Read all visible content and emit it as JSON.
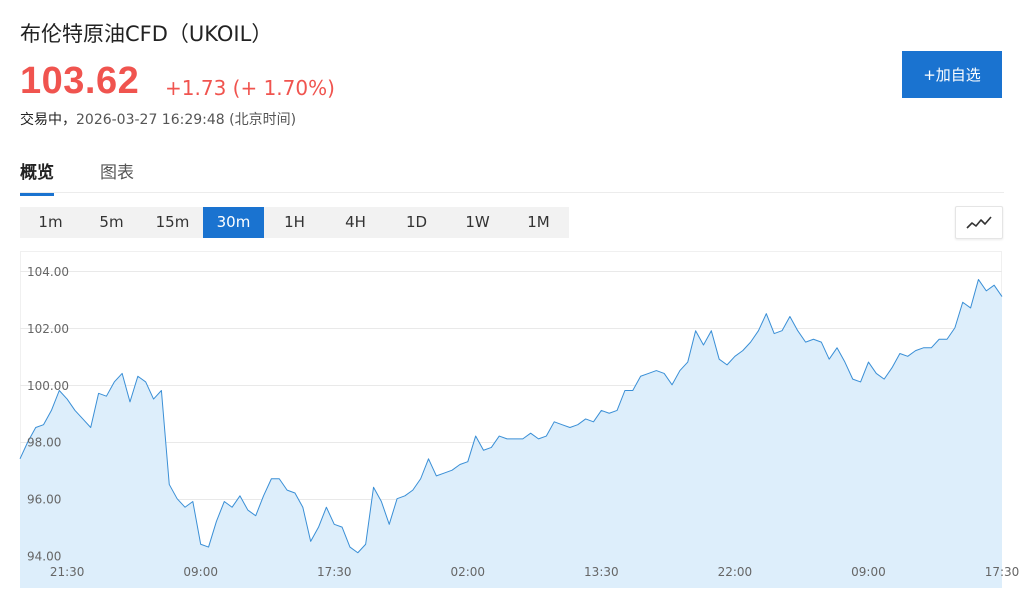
{
  "header": {
    "title": "布伦特原油CFD（UKOIL）",
    "price": "103.62",
    "change": "+1.73 (+ 1.70%)",
    "status": "交易中，",
    "timestamp": "2026-03-27 16:29:48 (北京时间)",
    "watch_button": "+加自选"
  },
  "colors": {
    "up": "#f0544f",
    "accent": "#1a73d0",
    "line": "#3a8fd6",
    "fill": "#ddeefb",
    "grid": "#e9e9e9"
  },
  "tabs": [
    {
      "label": "概览",
      "active": true
    },
    {
      "label": "图表",
      "active": false
    }
  ],
  "intervals": [
    {
      "label": "1m",
      "active": false
    },
    {
      "label": "5m",
      "active": false
    },
    {
      "label": "15m",
      "active": false
    },
    {
      "label": "30m",
      "active": true
    },
    {
      "label": "1H",
      "active": false
    },
    {
      "label": "4H",
      "active": false
    },
    {
      "label": "1D",
      "active": false
    },
    {
      "label": "1W",
      "active": false
    },
    {
      "label": "1M",
      "active": false
    }
  ],
  "chart_type_icon": "line-chart-icon",
  "chart_data": {
    "type": "area",
    "title": "",
    "xlabel": "",
    "ylabel": "",
    "ylim": [
      93.6,
      104.7
    ],
    "yticks": [
      94.0,
      96.0,
      98.0,
      100.0,
      102.0,
      104.0
    ],
    "ytick_labels": [
      "94.00",
      "96.00",
      "98.00",
      "100.00",
      "102.00",
      "104.00"
    ],
    "xtick_labels": [
      "21:30",
      "09:00",
      "17:30",
      "02:00",
      "13:30",
      "22:00",
      "09:00",
      "17:30"
    ],
    "xtick_index": [
      6,
      23,
      40,
      57,
      74,
      91,
      108,
      125
    ],
    "grid": true,
    "series": [
      {
        "values": [
          97.4,
          98.0,
          98.5,
          98.6,
          99.1,
          99.8,
          99.5,
          99.1,
          98.8,
          98.5,
          99.7,
          99.6,
          100.1,
          100.4,
          99.4,
          100.3,
          100.1,
          99.5,
          99.8,
          96.5,
          96.0,
          95.7,
          95.9,
          94.4,
          94.3,
          95.2,
          95.9,
          95.7,
          96.1,
          95.6,
          95.4,
          96.1,
          96.7,
          96.7,
          96.3,
          96.2,
          95.7,
          94.5,
          95.0,
          95.7,
          95.1,
          95.0,
          94.3,
          94.1,
          94.4,
          96.4,
          95.9,
          95.1,
          96.0,
          96.1,
          96.3,
          96.7,
          97.4,
          96.8,
          96.9,
          97.0,
          97.2,
          97.3,
          98.2,
          97.7,
          97.8,
          98.2,
          98.1,
          98.1,
          98.1,
          98.3,
          98.1,
          98.2,
          98.7,
          98.6,
          98.5,
          98.6,
          98.8,
          98.7,
          99.1,
          99.0,
          99.1,
          99.8,
          99.8,
          100.3,
          100.4,
          100.5,
          100.4,
          100.0,
          100.5,
          100.8,
          101.9,
          101.4,
          101.9,
          100.9,
          100.7,
          101.0,
          101.2,
          101.5,
          101.9,
          102.5,
          101.8,
          101.9,
          102.4,
          101.9,
          101.5,
          101.6,
          101.5,
          100.9,
          101.3,
          100.8,
          100.2,
          100.1,
          100.8,
          100.4,
          100.2,
          100.6,
          101.1,
          101.0,
          101.2,
          101.3,
          101.3,
          101.6,
          101.6,
          102.0,
          102.9,
          102.7,
          103.7,
          103.3,
          103.5,
          103.1
        ]
      }
    ]
  }
}
